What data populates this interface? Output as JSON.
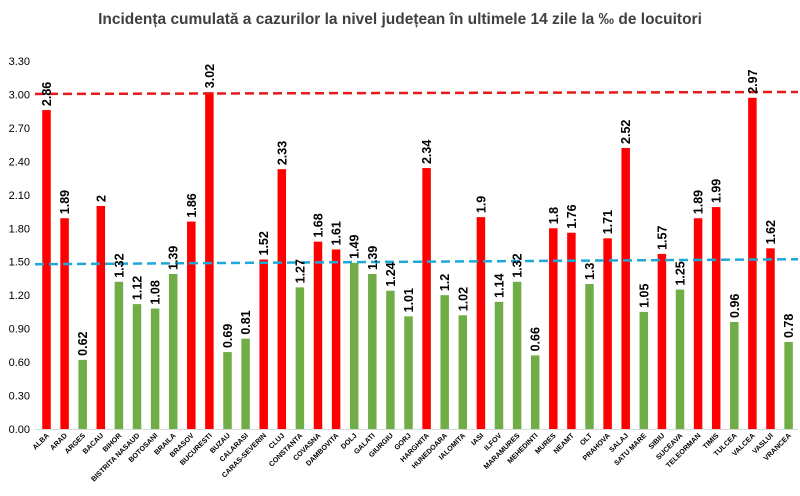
{
  "chart_data": {
    "type": "bar",
    "title": "Incidența cumulată a cazurilor la nivel județean în ultimele 14 zile la ‰ de locuitori",
    "xlabel": "",
    "ylabel": "",
    "ylim": [
      0,
      3.3
    ],
    "yticks": [
      "0.00",
      "0.30",
      "0.60",
      "0.90",
      "1.20",
      "1.50",
      "1.80",
      "2.10",
      "2.40",
      "2.70",
      "3.00",
      "3.30"
    ],
    "grid": false,
    "legend": "none",
    "colors": {
      "high": "#ff0000",
      "low": "#70ad47",
      "line_high": "#e41a1c",
      "line_low": "#1fa7d8"
    },
    "color_threshold": 1.5,
    "reference_lines": [
      3.0,
      1.5
    ],
    "categories": [
      "ALBA",
      "ARAD",
      "ARGES",
      "BACAU",
      "BIHOR",
      "BISTRITA NASAUD",
      "BOTOSANI",
      "BRAILA",
      "BRASOV",
      "BUCURESTI",
      "BUZAU",
      "CALARASI",
      "CARAS-SEVERIN",
      "CLUJ",
      "CONSTANTA",
      "COVASNA",
      "DAMBOVITA",
      "DOLJ",
      "GALATI",
      "GIURGIU",
      "GORJ",
      "HARGHITA",
      "HUNEDOARA",
      "IALOMITA",
      "IASI",
      "ILFOV",
      "MARAMURES",
      "MEHEDINTI",
      "MURES",
      "NEAMT",
      "OLT",
      "PRAHOVA",
      "SALAJ",
      "SATU MARE",
      "SIBIU",
      "SUCEAVA",
      "TELEORMAN",
      "TIMIS",
      "TULCEA",
      "VALCEA",
      "VASLUI",
      "VRANCEA"
    ],
    "values": [
      2.86,
      1.89,
      0.62,
      2,
      1.32,
      1.12,
      1.08,
      1.39,
      1.86,
      3.02,
      0.69,
      0.81,
      1.52,
      2.33,
      1.27,
      1.68,
      1.61,
      1.49,
      1.39,
      1.24,
      1.01,
      2.34,
      1.2,
      1.02,
      1.9,
      1.14,
      1.32,
      0.66,
      1.8,
      1.76,
      1.3,
      1.71,
      2.52,
      1.05,
      1.57,
      1.25,
      1.89,
      1.99,
      0.96,
      2.97,
      1.62,
      0.78
    ]
  }
}
